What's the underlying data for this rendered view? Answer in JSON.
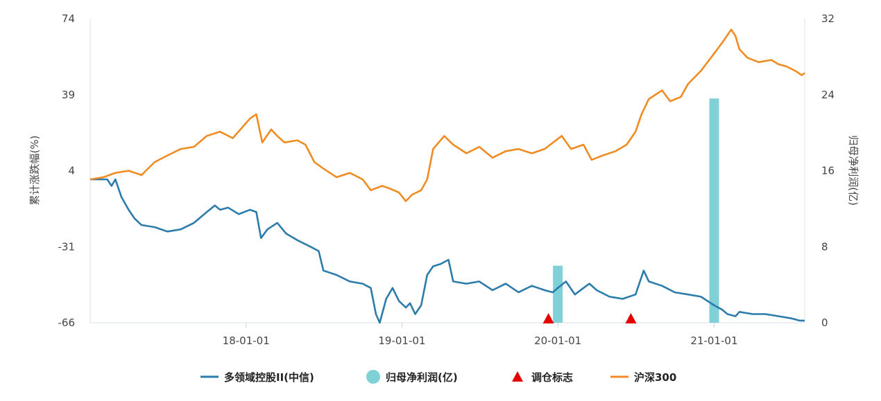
{
  "chart_data": {
    "type": "line",
    "title": "",
    "ylabel_left": "累计涨跌幅(%)",
    "ylabel_right": "归母净利润(亿)",
    "left_ticks": [
      "74",
      "39",
      "4",
      "-31",
      "-66"
    ],
    "right_ticks": [
      "32",
      "24",
      "16",
      "8",
      "0"
    ],
    "x_ticks": [
      "18-01-01",
      "19-01-01",
      "20-01-01",
      "21-01-01"
    ],
    "ylim_left": [
      -66,
      74
    ],
    "ylim_right": [
      0,
      32
    ],
    "xlim": [
      "2017-01-01",
      "2021-08-01"
    ],
    "grid": false,
    "legend_position": "bottom",
    "series": [
      {
        "name": "多领域控股II(中信)",
        "kind": "line",
        "axis": "left",
        "color": "#2b7bab",
        "points": [
          [
            "2017-01-01",
            0
          ],
          [
            "2017-02-10",
            0
          ],
          [
            "2017-02-20",
            -3
          ],
          [
            "2017-03-01",
            0
          ],
          [
            "2017-03-15",
            -8
          ],
          [
            "2017-04-01",
            -14
          ],
          [
            "2017-04-15",
            -18
          ],
          [
            "2017-05-01",
            -21
          ],
          [
            "2017-06-01",
            -22
          ],
          [
            "2017-07-01",
            -24
          ],
          [
            "2017-08-01",
            -23
          ],
          [
            "2017-09-01",
            -20
          ],
          [
            "2017-10-01",
            -15
          ],
          [
            "2017-10-20",
            -12
          ],
          [
            "2017-11-01",
            -14
          ],
          [
            "2017-11-20",
            -13
          ],
          [
            "2017-12-15",
            -16
          ],
          [
            "2018-01-10",
            -14
          ],
          [
            "2018-01-25",
            -15
          ],
          [
            "2018-02-05",
            -27
          ],
          [
            "2018-02-20",
            -23
          ],
          [
            "2018-03-15",
            -20
          ],
          [
            "2018-04-05",
            -25
          ],
          [
            "2018-05-01",
            -28
          ],
          [
            "2018-06-01",
            -31
          ],
          [
            "2018-06-20",
            -33
          ],
          [
            "2018-07-01",
            -42
          ],
          [
            "2018-08-01",
            -44
          ],
          [
            "2018-09-01",
            -47
          ],
          [
            "2018-10-01",
            -48
          ],
          [
            "2018-10-20",
            -50
          ],
          [
            "2018-11-01",
            -62
          ],
          [
            "2018-11-10",
            -66
          ],
          [
            "2018-11-25",
            -55
          ],
          [
            "2018-12-10",
            -50
          ],
          [
            "2018-12-25",
            -56
          ],
          [
            "2019-01-10",
            -59
          ],
          [
            "2019-01-20",
            -57
          ],
          [
            "2019-02-01",
            -62
          ],
          [
            "2019-02-15",
            -58
          ],
          [
            "2019-03-01",
            -44
          ],
          [
            "2019-03-15",
            -40
          ],
          [
            "2019-04-01",
            -39
          ],
          [
            "2019-04-20",
            -37
          ],
          [
            "2019-05-01",
            -47
          ],
          [
            "2019-06-01",
            -48
          ],
          [
            "2019-07-01",
            -47
          ],
          [
            "2019-08-01",
            -51
          ],
          [
            "2019-09-01",
            -48
          ],
          [
            "2019-10-01",
            -52
          ],
          [
            "2019-11-01",
            -49
          ],
          [
            "2019-12-01",
            -51
          ],
          [
            "2019-12-20",
            -52
          ],
          [
            "2020-01-01",
            -50
          ],
          [
            "2020-01-20",
            -47
          ],
          [
            "2020-02-10",
            -53
          ],
          [
            "2020-03-01",
            -50
          ],
          [
            "2020-03-15",
            -48
          ],
          [
            "2020-04-01",
            -51
          ],
          [
            "2020-05-01",
            -54
          ],
          [
            "2020-06-01",
            -55
          ],
          [
            "2020-07-01",
            -53
          ],
          [
            "2020-07-20",
            -42
          ],
          [
            "2020-08-01",
            -47
          ],
          [
            "2020-09-01",
            -49
          ],
          [
            "2020-10-01",
            -52
          ],
          [
            "2020-11-01",
            -53
          ],
          [
            "2020-12-01",
            -54
          ],
          [
            "2021-01-01",
            -58
          ],
          [
            "2021-01-20",
            -60
          ],
          [
            "2021-02-01",
            -62
          ],
          [
            "2021-02-20",
            -63
          ],
          [
            "2021-03-01",
            -61
          ],
          [
            "2021-04-01",
            -62
          ],
          [
            "2021-05-01",
            -62
          ],
          [
            "2021-06-01",
            -63
          ],
          [
            "2021-07-01",
            -64
          ],
          [
            "2021-07-20",
            -65
          ],
          [
            "2021-08-01",
            -65
          ]
        ]
      },
      {
        "name": "归母净利润(亿)",
        "kind": "bar",
        "axis": "right",
        "color": "#7fd0d7",
        "points": [
          [
            "2020-01-01",
            6
          ],
          [
            "2021-01-01",
            23.6
          ]
        ]
      },
      {
        "name": "调仓标志",
        "kind": "marker",
        "axis": "left",
        "color": "#e50000",
        "points": [
          [
            "2019-12-10",
            -66
          ],
          [
            "2020-06-20",
            -66
          ]
        ]
      },
      {
        "name": "沪深300",
        "kind": "line",
        "axis": "left",
        "color": "#f08b22",
        "points": [
          [
            "2017-01-01",
            0
          ],
          [
            "2017-02-01",
            1
          ],
          [
            "2017-03-01",
            3
          ],
          [
            "2017-04-01",
            4
          ],
          [
            "2017-05-01",
            2
          ],
          [
            "2017-06-01",
            8
          ],
          [
            "2017-07-01",
            11
          ],
          [
            "2017-08-01",
            14
          ],
          [
            "2017-09-01",
            15
          ],
          [
            "2017-10-01",
            20
          ],
          [
            "2017-11-01",
            22
          ],
          [
            "2017-12-01",
            19
          ],
          [
            "2018-01-10",
            28
          ],
          [
            "2018-01-25",
            30
          ],
          [
            "2018-02-08",
            17
          ],
          [
            "2018-03-01",
            23
          ],
          [
            "2018-03-15",
            20
          ],
          [
            "2018-04-01",
            17
          ],
          [
            "2018-05-01",
            18
          ],
          [
            "2018-05-20",
            16
          ],
          [
            "2018-06-10",
            8
          ],
          [
            "2018-07-01",
            5
          ],
          [
            "2018-08-01",
            1
          ],
          [
            "2018-09-01",
            3
          ],
          [
            "2018-10-01",
            0
          ],
          [
            "2018-10-20",
            -5
          ],
          [
            "2018-11-15",
            -3
          ],
          [
            "2018-12-01",
            -4
          ],
          [
            "2018-12-25",
            -6
          ],
          [
            "2019-01-10",
            -10
          ],
          [
            "2019-01-25",
            -7
          ],
          [
            "2019-02-15",
            -5
          ],
          [
            "2019-03-01",
            0
          ],
          [
            "2019-03-15",
            14
          ],
          [
            "2019-04-10",
            20
          ],
          [
            "2019-05-01",
            16
          ],
          [
            "2019-06-01",
            12
          ],
          [
            "2019-07-01",
            15
          ],
          [
            "2019-08-01",
            10
          ],
          [
            "2019-09-01",
            13
          ],
          [
            "2019-10-01",
            14
          ],
          [
            "2019-11-01",
            12
          ],
          [
            "2019-12-01",
            14
          ],
          [
            "2020-01-10",
            20
          ],
          [
            "2020-02-01",
            14
          ],
          [
            "2020-03-01",
            16
          ],
          [
            "2020-03-20",
            9
          ],
          [
            "2020-04-15",
            11
          ],
          [
            "2020-05-15",
            13
          ],
          [
            "2020-06-10",
            16
          ],
          [
            "2020-07-01",
            22
          ],
          [
            "2020-07-15",
            30
          ],
          [
            "2020-08-01",
            37
          ],
          [
            "2020-09-01",
            41
          ],
          [
            "2020-09-20",
            36
          ],
          [
            "2020-10-15",
            38
          ],
          [
            "2020-11-01",
            44
          ],
          [
            "2020-12-01",
            50
          ],
          [
            "2021-01-01",
            58
          ],
          [
            "2021-01-20",
            63
          ],
          [
            "2021-02-10",
            69
          ],
          [
            "2021-02-20",
            66
          ],
          [
            "2021-03-01",
            60
          ],
          [
            "2021-03-20",
            56
          ],
          [
            "2021-04-15",
            54
          ],
          [
            "2021-05-15",
            55
          ],
          [
            "2021-06-01",
            53
          ],
          [
            "2021-06-20",
            52
          ],
          [
            "2021-07-10",
            50
          ],
          [
            "2021-07-25",
            48
          ],
          [
            "2021-08-01",
            49
          ]
        ]
      }
    ]
  },
  "legend": [
    {
      "label": "多领域控股II(中信)",
      "kind": "line",
      "color": "#2b7bab"
    },
    {
      "label": "归母净利润(亿)",
      "kind": "circle",
      "color": "#7fd0d7"
    },
    {
      "label": "调仓标志",
      "kind": "triangle",
      "color": "#e50000"
    },
    {
      "label": "沪深300",
      "kind": "line",
      "color": "#f08b22"
    }
  ]
}
